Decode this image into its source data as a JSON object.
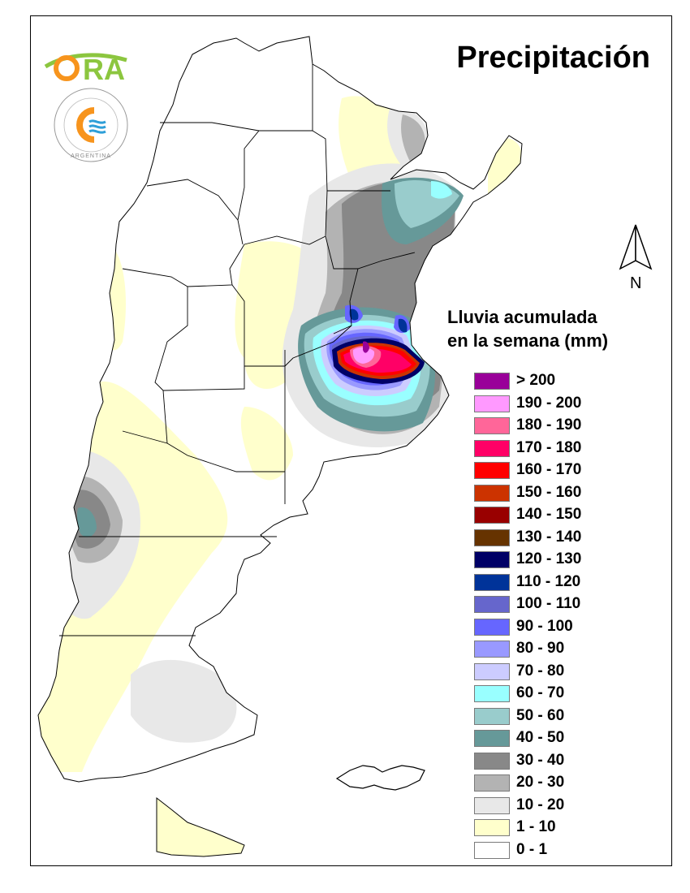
{
  "map": {
    "title": "Precipitación",
    "north_label": "N",
    "legend_title": [
      "Lluvia acumulada",
      "en la semana (mm)"
    ],
    "colors": {
      "ocean": "#ffffff",
      "border": "#000000"
    },
    "logos": {
      "ora": {
        "text": "ORA",
        "colors": [
          "#8cc63f",
          "#f7941d",
          "#2e9fd8"
        ]
      },
      "smn": {
        "ring_text": "SERVICIO METEOROLÓGICO NACIONAL",
        "bottom_text": "ARGENTINA",
        "colors": [
          "#f7941d",
          "#2e9fd8"
        ]
      }
    },
    "legend": [
      {
        "label": "> 200",
        "color": "#990099"
      },
      {
        "label": "190 - 200",
        "color": "#ff99ff"
      },
      {
        "label": "180 - 190",
        "color": "#ff6699"
      },
      {
        "label": "170 - 180",
        "color": "#ff0066"
      },
      {
        "label": "160 - 170",
        "color": "#ff0000"
      },
      {
        "label": "150 - 160",
        "color": "#cc3300"
      },
      {
        "label": "140 - 150",
        "color": "#990000"
      },
      {
        "label": "130 - 140",
        "color": "#663300"
      },
      {
        "label": "120 - 130",
        "color": "#000066"
      },
      {
        "label": "110 - 120",
        "color": "#003399"
      },
      {
        "label": "100 - 110",
        "color": "#6666cc"
      },
      {
        "label": "90 - 100",
        "color": "#6666ff"
      },
      {
        "label": "80 - 90",
        "color": "#9999ff"
      },
      {
        "label": "70 - 80",
        "color": "#ccccff"
      },
      {
        "label": "60 - 70",
        "color": "#99ffff"
      },
      {
        "label": "50 - 60",
        "color": "#99cccc"
      },
      {
        "label": "40 - 50",
        "color": "#669999"
      },
      {
        "label": "30 - 40",
        "color": "#888888"
      },
      {
        "label": "20 - 30",
        "color": "#b3b3b3"
      },
      {
        "label": "10 - 20",
        "color": "#e8e8e8"
      },
      {
        "label": "1 - 10",
        "color": "#ffffcc"
      },
      {
        "label": "0 - 1",
        "color": "#ffffff"
      }
    ]
  }
}
